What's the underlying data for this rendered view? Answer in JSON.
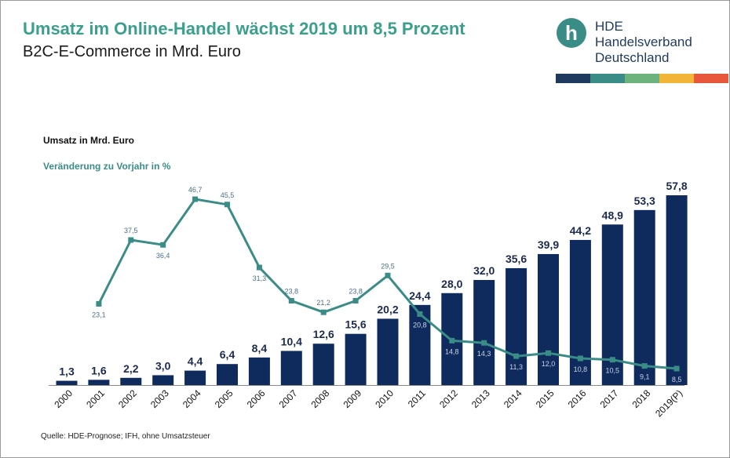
{
  "header": {
    "title": "Umsatz im Online-Handel wächst 2019 um 8,5 Prozent",
    "subtitle": "B2C-E-Commerce in Mrd. Euro"
  },
  "logo": {
    "letter": "h",
    "line1": "HDE",
    "line2": "Handelsverband",
    "line3": "Deutschland",
    "stripe_colors": [
      "#1f3a5f",
      "#3a8c86",
      "#6db37e",
      "#f2b53a",
      "#e8573c"
    ]
  },
  "legend": {
    "bars_label": "Umsatz in Mrd. Euro",
    "line_label": "Veränderung zu Vorjahr in %"
  },
  "source": "Quelle: HDE-Prognose;  IFH, ohne Umsatzsteuer",
  "colors": {
    "bar": "#0f2a5c",
    "line": "#3a8c86",
    "title": "#3aa08c"
  },
  "chart_data": {
    "type": "bar",
    "categories": [
      "2000",
      "2001",
      "2002",
      "2003",
      "2004",
      "2005",
      "2006",
      "2007",
      "2008",
      "2009",
      "2010",
      "2011",
      "2012",
      "2013",
      "2014",
      "2015",
      "2016",
      "2017",
      "2018",
      "2019(P)"
    ],
    "series": [
      {
        "name": "Umsatz in Mrd. Euro",
        "type": "bar",
        "values": [
          1.3,
          1.6,
          2.2,
          3.0,
          4.4,
          6.4,
          8.4,
          10.4,
          12.6,
          15.6,
          20.2,
          24.4,
          28.0,
          32.0,
          35.6,
          39.9,
          44.2,
          48.9,
          53.3,
          57.8
        ],
        "labels": [
          "1,3",
          "1,6",
          "2,2",
          "3,0",
          "4,4",
          "6,4",
          "8,4",
          "10,4",
          "12,6",
          "15,6",
          "20,2",
          "24,4",
          "28,0",
          "32,0",
          "35,6",
          "39,9",
          "44,2",
          "48,9",
          "53,3",
          "57,8"
        ]
      },
      {
        "name": "Veränderung zu Vorjahr in %",
        "type": "line",
        "values": [
          null,
          23.1,
          37.5,
          36.4,
          46.7,
          45.5,
          31.3,
          23.8,
          21.2,
          23.8,
          29.5,
          20.8,
          14.8,
          14.3,
          11.3,
          12.0,
          10.8,
          10.5,
          9.1,
          8.5
        ],
        "labels": [
          "",
          "23,1",
          "37,5",
          "36,4",
          "46,7",
          "45,5",
          "31,3",
          "23,8",
          "21,2",
          "23,8",
          "29,5",
          "20,8",
          "14,8",
          "14,3",
          "11,3",
          "12,0",
          "10,8",
          "10,5",
          "9,1",
          "8,5"
        ]
      }
    ],
    "grid": false,
    "legend": "top-left"
  }
}
